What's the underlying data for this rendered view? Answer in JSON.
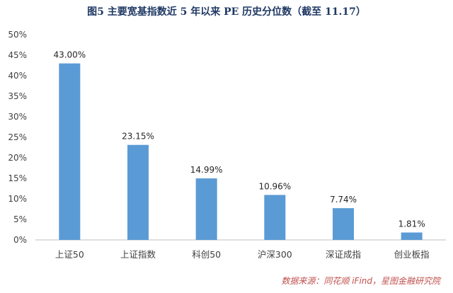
{
  "chart_data": {
    "type": "bar",
    "title": "图5   主要宽基指数近 5 年以来 PE 历史分位数（截至 11.17）",
    "categories": [
      "上证50",
      "上证指数",
      "科创50",
      "沪深300",
      "深证成指",
      "创业板指"
    ],
    "values": [
      43.0,
      23.15,
      14.99,
      10.96,
      7.74,
      1.81
    ],
    "value_labels": [
      "43.00%",
      "23.15%",
      "14.99%",
      "10.96%",
      "7.74%",
      "1.81%"
    ],
    "yticks": [
      "0%",
      "5%",
      "10%",
      "15%",
      "20%",
      "25%",
      "30%",
      "35%",
      "40%",
      "45%",
      "50%"
    ],
    "ylim": [
      0,
      50
    ],
    "xlabel": "",
    "ylabel": "",
    "grid": false,
    "bar_color": "#5B9BD5"
  },
  "source": "数据来源：同花顺 iFind，星图金融研究院"
}
